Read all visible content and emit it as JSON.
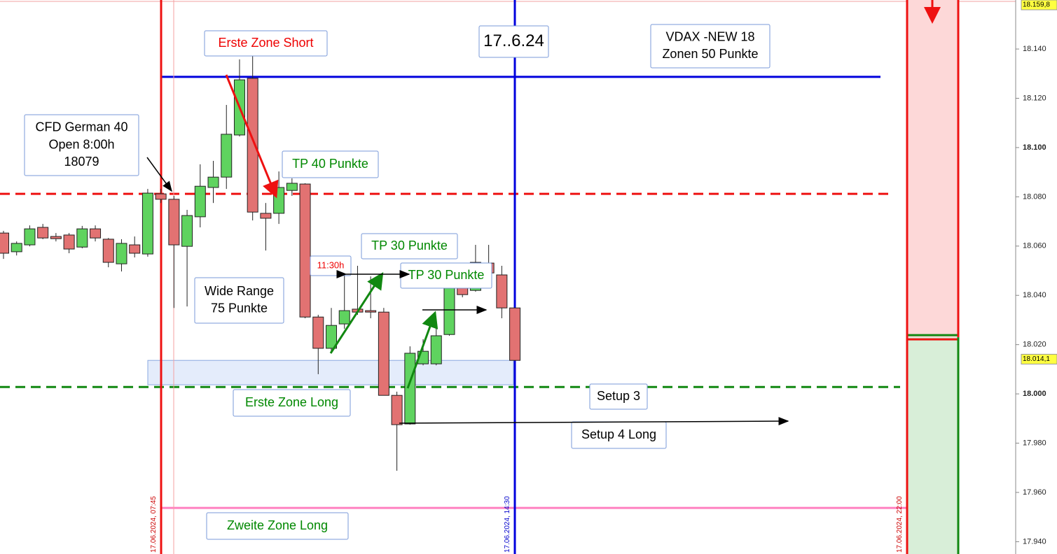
{
  "chart_data": {
    "type": "candlestick",
    "up_color": "#5fd35f",
    "down_color": "#e27272",
    "open": [
      18065.3,
      18057.7,
      18060.5,
      18067.6,
      18063.9,
      18064.5,
      18059.6,
      18067.0,
      18062.8,
      18052.8,
      18060.5,
      18056.8,
      18081.2,
      18079.0,
      18059.9,
      18071.9,
      18083.8,
      18088.0,
      18105.1,
      18128.1,
      18073.3,
      18073.3,
      18082.6,
      18085.2,
      18031.2,
      18018.5,
      18028.4,
      18034.4,
      18033.8,
      18033.2,
      17999.4,
      17987.8,
      18012.2,
      18012.2,
      18024.1,
      18042.9,
      18042.0,
      18053.1,
      18048.3,
      18034.9
    ],
    "high": [
      18066.2,
      18061.9,
      18068.4,
      18069.0,
      18065.3,
      18065.3,
      18068.2,
      18068.4,
      18063.3,
      18062.8,
      18063.9,
      18083.2,
      18083.2,
      18080.4,
      18074.7,
      18093.2,
      18094.6,
      18117.3,
      18135.8,
      18147.1,
      18077.5,
      18090.3,
      18087.5,
      18085.5,
      18032.1,
      18034.9,
      18049.1,
      18052.0,
      18047.7,
      18034.9,
      18000.9,
      18019.3,
      18022.2,
      18027.8,
      18044.9,
      18047.7,
      18060.5,
      18060.5,
      18052.0,
      18034.9
    ],
    "low": [
      18054.8,
      18056.2,
      18059.9,
      18062.8,
      18061.9,
      18057.1,
      18059.1,
      18061.9,
      18051.4,
      18049.7,
      18055.4,
      18055.7,
      18077.5,
      18034.9,
      18035.5,
      18067.6,
      18077.5,
      18083.2,
      18104.5,
      18070.4,
      18058.2,
      18069.0,
      18080.4,
      18030.7,
      18008.0,
      18016.5,
      18026.4,
      18032.1,
      18030.7,
      17999.4,
      17968.8,
      17987.5,
      18011.6,
      18011.6,
      18023.6,
      18039.2,
      18041.5,
      18047.7,
      18030.7,
      18013.6
    ],
    "close": [
      18057.1,
      18061.1,
      18067.0,
      18063.3,
      18063.0,
      18058.8,
      18067.0,
      18063.3,
      18053.4,
      18061.1,
      18057.1,
      18081.5,
      18079.0,
      18060.5,
      18072.4,
      18084.3,
      18088.0,
      18105.4,
      18127.5,
      18073.8,
      18071.3,
      18083.8,
      18085.5,
      18031.2,
      18018.5,
      18027.8,
      18033.8,
      18033.2,
      18033.2,
      17999.4,
      17987.5,
      18016.5,
      18017.3,
      18023.6,
      18042.9,
      18040.3,
      18053.4,
      18049.1,
      18034.9,
      18013.6
    ],
    "ylim": [
      17935.0,
      18159.9
    ],
    "yticks": [
      {
        "value": 17940,
        "label": "17.940"
      },
      {
        "value": 17960,
        "label": "17.960"
      },
      {
        "value": 17980,
        "label": "17.980"
      },
      {
        "value": 18000,
        "label": "18.000"
      },
      {
        "value": 18020,
        "label": "18.020"
      },
      {
        "value": 18040,
        "label": "18.040"
      },
      {
        "value": 18060,
        "label": "18.060"
      },
      {
        "value": 18080,
        "label": "18.080"
      },
      {
        "value": 18100,
        "label": "18.100"
      },
      {
        "value": 18120,
        "label": "18.120"
      },
      {
        "value": 18140,
        "label": "18.140"
      }
    ],
    "price_labels": [
      {
        "value": 18159.8,
        "label": "18.159,8"
      },
      {
        "value": 18014.1,
        "label": "18.014,1"
      }
    ],
    "levels": [
      {
        "value": 18128.7,
        "color": "#0000dd",
        "style": "solid"
      },
      {
        "value": 18081.2,
        "color": "#ee1111",
        "style": "dashed"
      },
      {
        "value": 18002.8,
        "color": "#118811",
        "style": "dashed"
      },
      {
        "value": 17953.7,
        "color": "#ff80c0",
        "style": "solid"
      }
    ],
    "zone": [
      18013.6,
      18003.7
    ],
    "risk_split": 18023.0,
    "time_labels": [
      "17.06.2024, 07:45",
      "17.06.2024, 14:30",
      "17.06.2024, 22:00"
    ],
    "annotations": [
      {
        "lines": [
          "Erste Zone Short"
        ],
        "color": "#ee0000"
      },
      {
        "lines": [
          "17..6.24"
        ],
        "color": "#000000"
      },
      {
        "lines": [
          "VDAX -NEW 18",
          "Zonen 50 Punkte"
        ],
        "color": "#000000"
      },
      {
        "lines": [
          "CFD German 40",
          "Open 8:00h",
          "18079"
        ],
        "color": "#000000"
      },
      {
        "lines": [
          "TP 40 Punkte"
        ],
        "color": "#008800"
      },
      {
        "lines": [
          "TP 30 Punkte"
        ],
        "color": "#008800"
      },
      {
        "lines": [
          "11:30h"
        ],
        "color": "#ee0000"
      },
      {
        "lines": [
          "TP 30 Punkte"
        ],
        "color": "#008800"
      },
      {
        "lines": [
          "Wide Range",
          "75 Punkte"
        ],
        "color": "#000000"
      },
      {
        "lines": [
          "Erste Zone Long"
        ],
        "color": "#008800"
      },
      {
        "lines": [
          "Setup 3"
        ],
        "color": "#000000"
      },
      {
        "lines": [
          "Setup 4 Long"
        ],
        "color": "#000000"
      },
      {
        "lines": [
          "Zweite Zone Long"
        ],
        "color": "#008800"
      }
    ]
  }
}
